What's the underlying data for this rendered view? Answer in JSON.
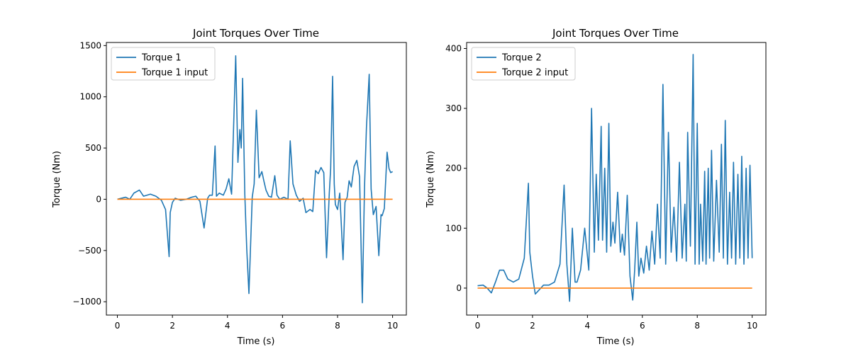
{
  "chart_data": [
    {
      "type": "line",
      "title": "Joint Torques Over Time",
      "xlabel": "Time (s)",
      "ylabel": "Torque (Nm)",
      "xlim": [
        -0.4,
        10.5
      ],
      "ylim": [
        -1130,
        1530
      ],
      "xticks": [
        0,
        2,
        4,
        6,
        8,
        10
      ],
      "xtick_labels": [
        "0",
        "2",
        "4",
        "6",
        "8",
        "10"
      ],
      "yticks": [
        -1000,
        -500,
        0,
        500,
        1000,
        1500
      ],
      "ytick_labels": [
        "−1000",
        "−500",
        "0",
        "500",
        "1000",
        "1500"
      ],
      "legend": "top-left",
      "grid": false,
      "series": [
        {
          "name": "Torque 1",
          "color": "#1f77b4",
          "x": [
            0,
            0.3,
            0.45,
            0.6,
            0.8,
            0.95,
            1.2,
            1.4,
            1.6,
            1.75,
            1.88,
            1.92,
            2.0,
            2.1,
            2.3,
            2.5,
            2.7,
            2.85,
            3.0,
            3.15,
            3.28,
            3.35,
            3.45,
            3.55,
            3.6,
            3.7,
            3.85,
            3.95,
            4.05,
            4.15,
            4.3,
            4.38,
            4.45,
            4.5,
            4.55,
            4.63,
            4.7,
            4.78,
            4.9,
            4.97,
            5.05,
            5.15,
            5.25,
            5.33,
            5.4,
            5.5,
            5.6,
            5.72,
            5.8,
            5.9,
            6.05,
            6.2,
            6.28,
            6.38,
            6.5,
            6.62,
            6.75,
            6.85,
            7.0,
            7.1,
            7.2,
            7.3,
            7.4,
            7.5,
            7.6,
            7.7,
            7.75,
            7.82,
            7.88,
            7.92,
            8.0,
            8.08,
            8.2,
            8.27,
            8.35,
            8.42,
            8.5,
            8.6,
            8.7,
            8.8,
            8.9,
            8.98,
            9.05,
            9.15,
            9.22,
            9.3,
            9.4,
            9.5,
            9.58,
            9.62,
            9.7,
            9.8,
            9.87,
            9.93,
            10.0
          ],
          "values": [
            0,
            20,
            0,
            60,
            90,
            30,
            50,
            30,
            -10,
            -100,
            -560,
            -130,
            -30,
            10,
            -10,
            0,
            20,
            30,
            -20,
            -280,
            10,
            40,
            40,
            520,
            30,
            60,
            40,
            100,
            200,
            50,
            1400,
            360,
            680,
            500,
            1180,
            50,
            -480,
            -920,
            20,
            150,
            870,
            210,
            270,
            170,
            90,
            30,
            20,
            230,
            40,
            0,
            20,
            0,
            570,
            150,
            40,
            -20,
            10,
            -130,
            -100,
            -120,
            280,
            250,
            310,
            260,
            -570,
            60,
            300,
            1200,
            150,
            -50,
            -100,
            60,
            -590,
            -30,
            20,
            180,
            120,
            320,
            380,
            220,
            -1010,
            120,
            700,
            1220,
            100,
            -150,
            -70,
            -550,
            -150,
            -160,
            -90,
            460,
            300,
            260,
            270
          ]
        },
        {
          "name": "Torque 1 input",
          "color": "#ff7f0e",
          "x": [
            0,
            10
          ],
          "values": [
            0,
            0
          ]
        }
      ]
    },
    {
      "type": "line",
      "title": "Joint Torques Over Time",
      "xlabel": "Time (s)",
      "ylabel": "Torque (Nm)",
      "xlim": [
        -0.4,
        10.5
      ],
      "ylim": [
        -45,
        410
      ],
      "xticks": [
        0,
        2,
        4,
        6,
        8,
        10
      ],
      "xtick_labels": [
        "0",
        "2",
        "4",
        "6",
        "8",
        "10"
      ],
      "yticks": [
        0,
        100,
        200,
        300,
        400
      ],
      "ytick_labels": [
        "0",
        "100",
        "200",
        "300",
        "400"
      ],
      "legend": "top-left",
      "grid": false,
      "series": [
        {
          "name": "Torque 2",
          "color": "#1f77b4",
          "x": [
            0,
            0.2,
            0.35,
            0.5,
            0.65,
            0.8,
            0.95,
            1.1,
            1.3,
            1.5,
            1.7,
            1.85,
            1.9,
            2.0,
            2.1,
            2.2,
            2.4,
            2.6,
            2.8,
            3.0,
            3.15,
            3.25,
            3.35,
            3.45,
            3.55,
            3.62,
            3.75,
            3.9,
            4.05,
            4.15,
            4.25,
            4.32,
            4.4,
            4.5,
            4.55,
            4.63,
            4.7,
            4.78,
            4.85,
            4.93,
            5.0,
            5.1,
            5.2,
            5.27,
            5.35,
            5.45,
            5.55,
            5.65,
            5.72,
            5.8,
            5.87,
            5.95,
            6.05,
            6.15,
            6.25,
            6.35,
            6.45,
            6.55,
            6.65,
            6.75,
            6.85,
            6.95,
            7.05,
            7.15,
            7.25,
            7.35,
            7.45,
            7.55,
            7.6,
            7.65,
            7.75,
            7.85,
            7.92,
            8.0,
            8.07,
            8.12,
            8.2,
            8.27,
            8.32,
            8.4,
            8.45,
            8.52,
            8.6,
            8.7,
            8.8,
            8.88,
            8.95,
            9.02,
            9.1,
            9.18,
            9.25,
            9.32,
            9.4,
            9.48,
            9.55,
            9.62,
            9.7,
            9.78,
            9.85,
            9.92,
            10.0
          ],
          "values": [
            4,
            5,
            0,
            -8,
            10,
            30,
            30,
            15,
            10,
            15,
            50,
            175,
            60,
            20,
            -10,
            -5,
            5,
            5,
            10,
            40,
            172,
            40,
            -22,
            100,
            10,
            10,
            30,
            100,
            30,
            300,
            60,
            190,
            80,
            270,
            80,
            200,
            60,
            275,
            70,
            110,
            75,
            160,
            60,
            90,
            55,
            155,
            20,
            -20,
            30,
            110,
            20,
            50,
            25,
            70,
            30,
            95,
            40,
            140,
            50,
            340,
            40,
            260,
            60,
            135,
            45,
            210,
            50,
            140,
            45,
            260,
            70,
            390,
            40,
            275,
            40,
            140,
            45,
            195,
            40,
            200,
            50,
            230,
            45,
            180,
            60,
            240,
            50,
            280,
            40,
            160,
            50,
            210,
            40,
            190,
            50,
            220,
            40,
            200,
            50,
            205,
            50
          ]
        },
        {
          "name": "Torque 2 input",
          "color": "#ff7f0e",
          "x": [
            0,
            10
          ],
          "values": [
            0,
            0
          ]
        }
      ]
    }
  ]
}
